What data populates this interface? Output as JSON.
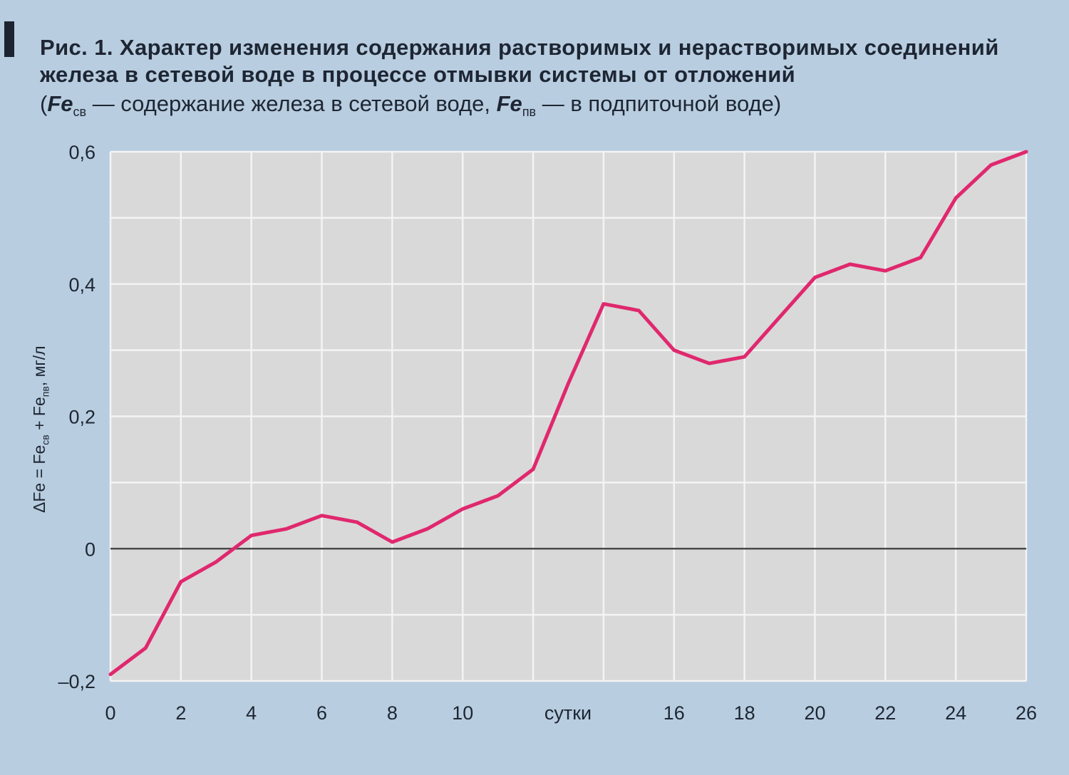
{
  "caption": {
    "title_line1": "Рис. 1. Характер изменения содержания растворимых и нерастворимых соединений",
    "title_line2": "железа в сетевой воде в процессе отмывки системы от отложений",
    "note_open": "(",
    "fe_sym": "Fe",
    "sub_sv": "св",
    "note_mid": " — содержание железа в сетевой воде, ",
    "sub_pv": "пв",
    "note_end": " — в подпиточной воде)"
  },
  "y_axis": {
    "label_prefix": "ΔFe = Fe",
    "label_sub1": "св",
    "label_mid": " + Fe",
    "label_sub2": "пв",
    "label_suffix": ", мг/л"
  },
  "chart_data": {
    "type": "line",
    "xlabel": "сутки",
    "xlim": [
      0,
      26
    ],
    "ylim": [
      -0.2,
      0.6
    ],
    "grid": true,
    "colors": {
      "line": "#e0286e",
      "zero_line": "#4a4a4a",
      "plot_bg": "#d9d9d9",
      "grid": "#f4f4f4"
    },
    "x_ticks": [
      {
        "value": 0,
        "label": "0"
      },
      {
        "value": 2,
        "label": "2"
      },
      {
        "value": 4,
        "label": "4"
      },
      {
        "value": 6,
        "label": "6"
      },
      {
        "value": 8,
        "label": "8"
      },
      {
        "value": 10,
        "label": "10"
      },
      {
        "value": 16,
        "label": "16"
      },
      {
        "value": 18,
        "label": "18"
      },
      {
        "value": 20,
        "label": "20"
      },
      {
        "value": 22,
        "label": "22"
      },
      {
        "value": 24,
        "label": "24"
      },
      {
        "value": 26,
        "label": "26"
      }
    ],
    "y_ticks": [
      {
        "value": -0.2,
        "label": "–0,2"
      },
      {
        "value": 0,
        "label": "0"
      },
      {
        "value": 0.2,
        "label": "0,2"
      },
      {
        "value": 0.4,
        "label": "0,4"
      },
      {
        "value": 0.6,
        "label": "0,6"
      }
    ],
    "series": [
      {
        "x": [
          0,
          1,
          2,
          3,
          4,
          5,
          6,
          7,
          8,
          9,
          10,
          11,
          12,
          13,
          14,
          15,
          16,
          17,
          18,
          19,
          20,
          21,
          22,
          23,
          24,
          25,
          26
        ],
        "y": [
          -0.19,
          -0.15,
          -0.05,
          -0.02,
          0.02,
          0.03,
          0.05,
          0.04,
          0.01,
          0.03,
          0.06,
          0.08,
          0.12,
          0.25,
          0.37,
          0.36,
          0.3,
          0.28,
          0.29,
          0.35,
          0.41,
          0.43,
          0.42,
          0.44,
          0.53,
          0.58,
          0.6
        ]
      }
    ]
  }
}
